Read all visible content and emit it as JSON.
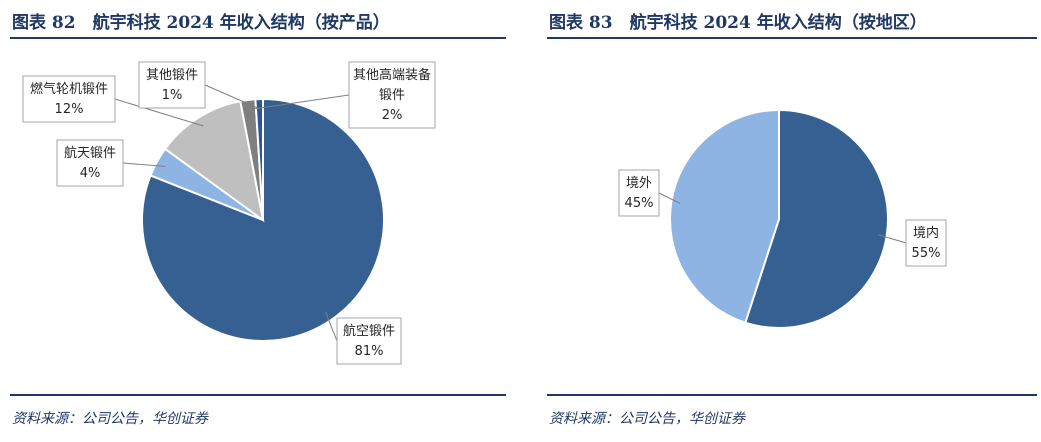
{
  "charts": {
    "left": {
      "title": "图表 82　航宇科技 2024 年收入结构（按产品）",
      "source": "资料来源：公司公告，华创证券"
    },
    "right": {
      "title": "图表 83　航宇科技 2024 年收入结构（按地区）",
      "source": "资料来源：公司公告，华创证券"
    }
  },
  "chart_data": [
    {
      "type": "pie",
      "title": "航宇科技 2024 年收入结构（按产品）",
      "slices": [
        {
          "name": "航空锻件",
          "value": 81,
          "label": "81%",
          "color": "#376092"
        },
        {
          "name": "航天锻件",
          "value": 4,
          "label": "4%",
          "color": "#8eb4e3"
        },
        {
          "name": "燃气轮机锻件",
          "value": 12,
          "label": "12%",
          "color": "#bfbfbf"
        },
        {
          "name": "其他高端装备锻件",
          "value": 2,
          "label": "2%",
          "color": "#7f7f7f"
        },
        {
          "name": "其他锻件",
          "value": 1,
          "label": "1%",
          "color": "#2e5597"
        }
      ]
    },
    {
      "type": "pie",
      "title": "航宇科技 2024 年收入结构（按地区）",
      "slices": [
        {
          "name": "境内",
          "value": 55,
          "label": "55%",
          "color": "#376092"
        },
        {
          "name": "境外",
          "value": 45,
          "label": "45%",
          "color": "#8eb4e3"
        }
      ]
    }
  ]
}
